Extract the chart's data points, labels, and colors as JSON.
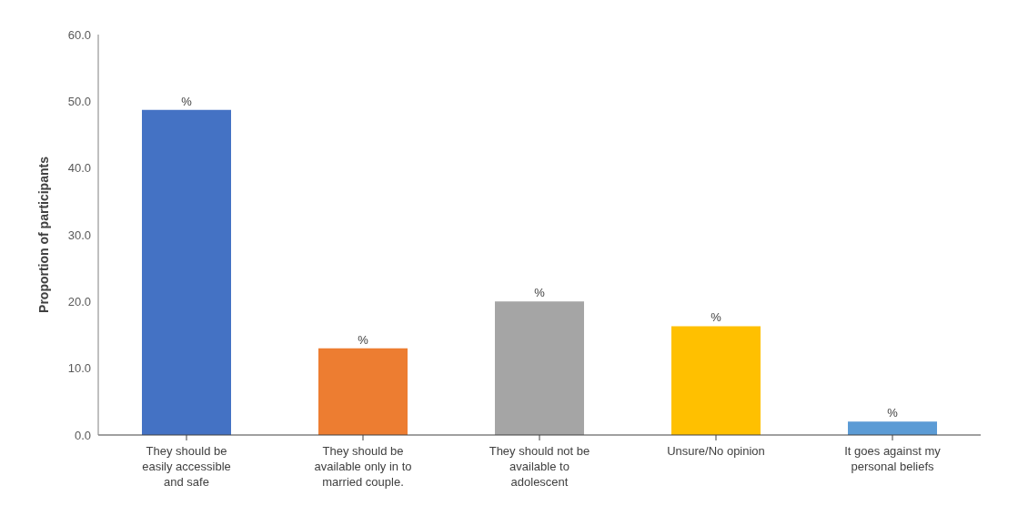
{
  "chart_data": {
    "type": "bar",
    "ylabel": "Proportion of participants",
    "categories": [
      "They should be easily accessible and safe",
      "They should be available only in to married couple.",
      "They should not be available to adolescent",
      "Unsure/No opinion",
      "It goes against my personal beliefs"
    ],
    "values": [
      48.7,
      13.0,
      20.0,
      16.3,
      2.0
    ],
    "colors": [
      "#4472c4",
      "#ed7d31",
      "#a5a5a5",
      "#ffc000",
      "#5b9bd5"
    ],
    "value_labels": [
      "%",
      "%",
      "%",
      "%",
      "%"
    ],
    "ylim": [
      0,
      60
    ],
    "yticks": [
      {
        "value": 0,
        "label": "0.0"
      },
      {
        "value": 10,
        "label": "10.0"
      },
      {
        "value": 20,
        "label": "20.0"
      },
      {
        "value": 30,
        "label": "30.0"
      },
      {
        "value": 40,
        "label": "40.0"
      },
      {
        "value": 50,
        "label": "50.0"
      },
      {
        "value": 60,
        "label": "60.0"
      }
    ],
    "grid": false,
    "legend": false
  }
}
